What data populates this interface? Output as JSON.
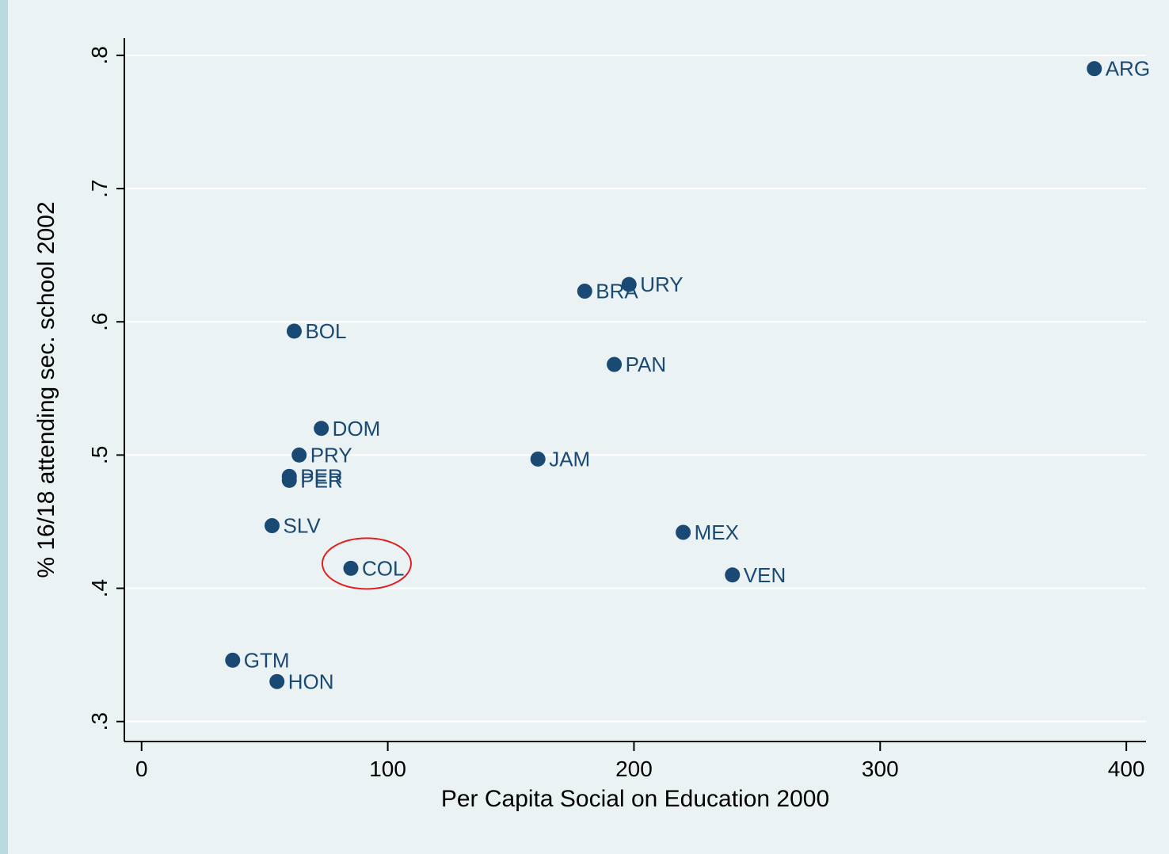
{
  "chart_data": {
    "type": "scatter",
    "xlabel": "Per Capita Social on Education 2000",
    "ylabel": "% 16/18 attending sec. school 2002",
    "xlim": [
      -7,
      408
    ],
    "ylim": [
      0.285,
      0.813
    ],
    "x_ticks": [
      0,
      100,
      200,
      300,
      400
    ],
    "x_tick_labels": [
      "0",
      "100",
      "200",
      "300",
      "400"
    ],
    "y_ticks": [
      0.3,
      0.4,
      0.5,
      0.6,
      0.7,
      0.8
    ],
    "y_tick_labels": [
      ".3",
      ".4",
      ".5",
      ".6",
      ".7",
      ".8"
    ],
    "grid": "horizontal",
    "marker_color": "#1a4a73",
    "highlight_color": "#e02020",
    "highlight": "COL",
    "points": [
      {
        "label": "ARG",
        "x": 387,
        "y": 0.79
      },
      {
        "label": "URY",
        "x": 198,
        "y": 0.628
      },
      {
        "label": "BRA",
        "x": 180,
        "y": 0.623
      },
      {
        "label": "BOL",
        "x": 62,
        "y": 0.593
      },
      {
        "label": "PAN",
        "x": 192,
        "y": 0.568
      },
      {
        "label": "DOM",
        "x": 73,
        "y": 0.52
      },
      {
        "label": "PRY",
        "x": 64,
        "y": 0.5
      },
      {
        "label": "JAM",
        "x": 161,
        "y": 0.497
      },
      {
        "label": "PER",
        "x": 60,
        "y": 0.484
      },
      {
        "label": "PER",
        "x": 60,
        "y": 0.481
      },
      {
        "label": "SLV",
        "x": 53,
        "y": 0.447
      },
      {
        "label": "MEX",
        "x": 220,
        "y": 0.442
      },
      {
        "label": "COL",
        "x": 85,
        "y": 0.415
      },
      {
        "label": "VEN",
        "x": 240,
        "y": 0.41
      },
      {
        "label": "GTM",
        "x": 37,
        "y": 0.346
      },
      {
        "label": "HON",
        "x": 55,
        "y": 0.33
      }
    ]
  }
}
